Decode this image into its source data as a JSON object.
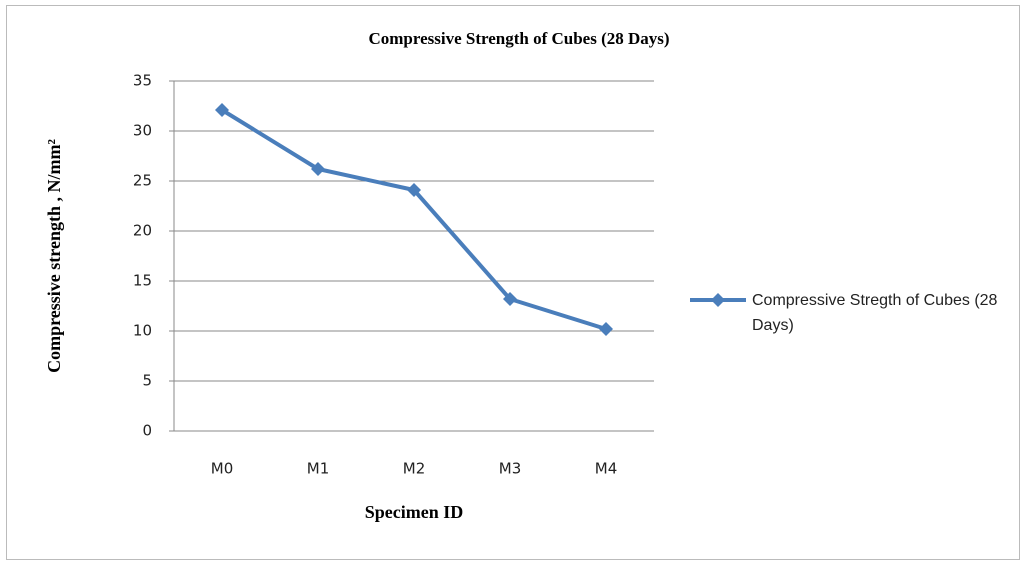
{
  "chart_data": {
    "type": "line",
    "title": "Compressive Strength of Cubes (28 Days)",
    "x_label": "Specimen ID",
    "y_label": "Compressive strength , N/mm²",
    "categories": [
      "M0",
      "M1",
      "M2",
      "M3",
      "M4"
    ],
    "series": [
      {
        "name": "Compressive Stregth of Cubes (28 Days)",
        "color": "#4a7ebb",
        "values": [
          32.1,
          26.2,
          24.1,
          13.2,
          10.2
        ]
      }
    ],
    "ylim": [
      0,
      35
    ],
    "yticks": [
      0,
      5,
      10,
      15,
      20,
      25,
      30,
      35
    ],
    "grid": true,
    "legend": "right"
  }
}
